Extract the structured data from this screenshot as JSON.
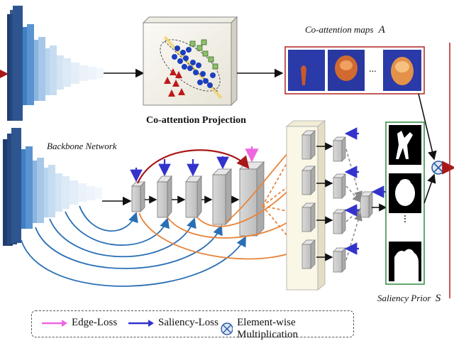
{
  "labels": {
    "coattention_maps": "Co-attention maps",
    "coattention_maps_symbol": "A",
    "coattention_projection": "Co-attention Projection",
    "backbone_network": "Backbone Network",
    "saliency_prior": "Saliency Prior",
    "saliency_prior_symbol": "S",
    "ellipsis": "..."
  },
  "legend": {
    "edge_loss": "Edge-Loss",
    "saliency_loss": "Saliency-Loss",
    "multiplication": "Element-wise Multiplication"
  },
  "colors": {
    "edge_loss": "#ee66dd",
    "saliency_loss": "#3333cc",
    "backbone_dark": "#1f3c6e",
    "backbone_mid": "#3f7fc4",
    "backbone_light": "#b9d4ee",
    "orange_arrow": "#e8843a",
    "blue_arrow": "#2a6fb5",
    "red_arrow": "#a81818",
    "maps_border": "#b22222",
    "prior_border": "#2e8b3e"
  }
}
